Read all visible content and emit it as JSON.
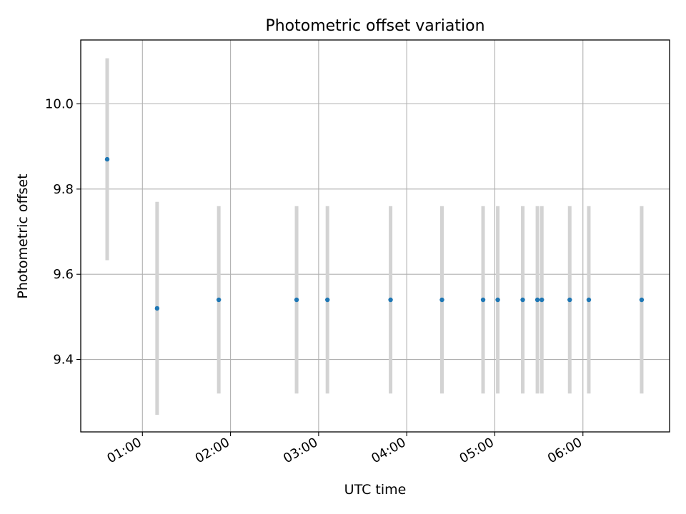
{
  "chart_data": {
    "type": "scatter",
    "title": "Photometric offset variation",
    "xlabel": "UTC time",
    "ylabel": "Photometric offset",
    "x_ticks": [
      "01:00",
      "02:00",
      "03:00",
      "04:00",
      "05:00",
      "06:00"
    ],
    "y_ticks": [
      "9.4",
      "9.6",
      "9.8",
      "10.0"
    ],
    "xlim": [
      "00:18",
      "06:59"
    ],
    "ylim": [
      9.23,
      10.15
    ],
    "grid": true,
    "marker_color": "#1f77b4",
    "errorbar_color": "#d3d3d3",
    "points": [
      {
        "time": "00:36",
        "value": 9.87,
        "error": 0.237
      },
      {
        "time": "01:10",
        "value": 9.52,
        "error": 0.25
      },
      {
        "time": "01:52",
        "value": 9.54,
        "error": 0.22
      },
      {
        "time": "02:45",
        "value": 9.54,
        "error": 0.22
      },
      {
        "time": "03:06",
        "value": 9.54,
        "error": 0.22
      },
      {
        "time": "03:49",
        "value": 9.54,
        "error": 0.22
      },
      {
        "time": "04:24",
        "value": 9.54,
        "error": 0.22
      },
      {
        "time": "04:52",
        "value": 9.54,
        "error": 0.22
      },
      {
        "time": "05:02",
        "value": 9.54,
        "error": 0.22
      },
      {
        "time": "05:19",
        "value": 9.54,
        "error": 0.22
      },
      {
        "time": "05:29",
        "value": 9.54,
        "error": 0.22
      },
      {
        "time": "05:32",
        "value": 9.54,
        "error": 0.22
      },
      {
        "time": "05:51",
        "value": 9.54,
        "error": 0.22
      },
      {
        "time": "06:04",
        "value": 9.54,
        "error": 0.22
      },
      {
        "time": "06:40",
        "value": 9.54,
        "error": 0.22
      }
    ]
  }
}
